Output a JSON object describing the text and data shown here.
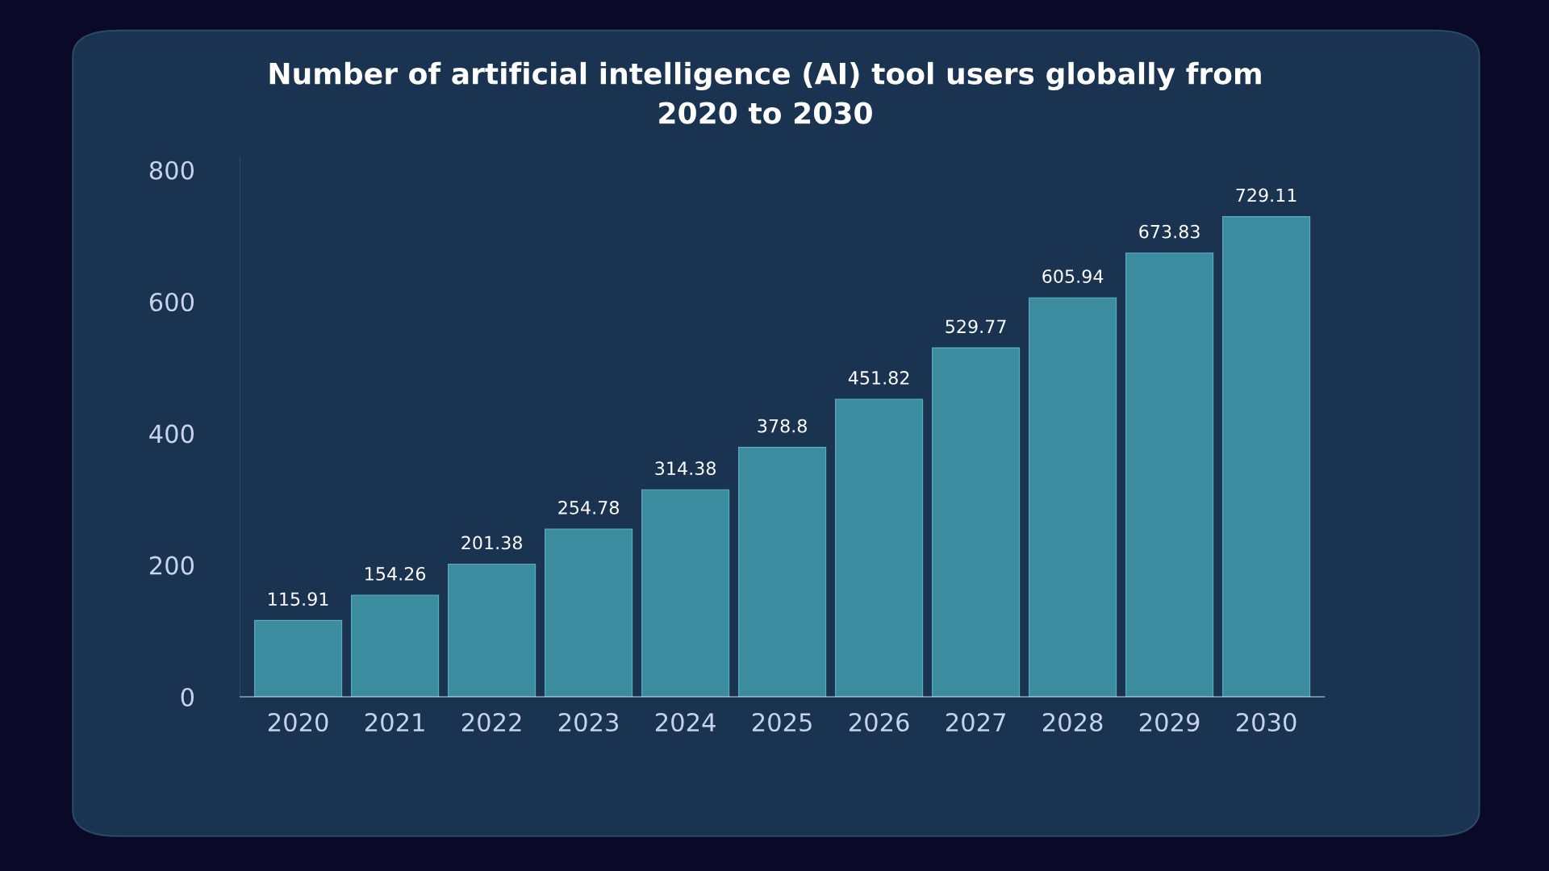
{
  "chart_data": {
    "type": "bar",
    "title": "Number of artificial intelligence (AI) tool users globally from\n2020 to 2030",
    "categories": [
      "2020",
      "2021",
      "2022",
      "2023",
      "2024",
      "2025",
      "2026",
      "2027",
      "2028",
      "2029",
      "2030"
    ],
    "values": [
      115.91,
      154.26,
      201.38,
      254.78,
      314.38,
      378.8,
      451.82,
      529.77,
      605.94,
      673.83,
      729.11
    ],
    "color": "#3a8c9e",
    "ylim": [
      0,
      820
    ],
    "yticks": [
      0,
      200,
      400,
      600,
      800
    ],
    "data_labels": true,
    "grid": false,
    "legend": false
  }
}
